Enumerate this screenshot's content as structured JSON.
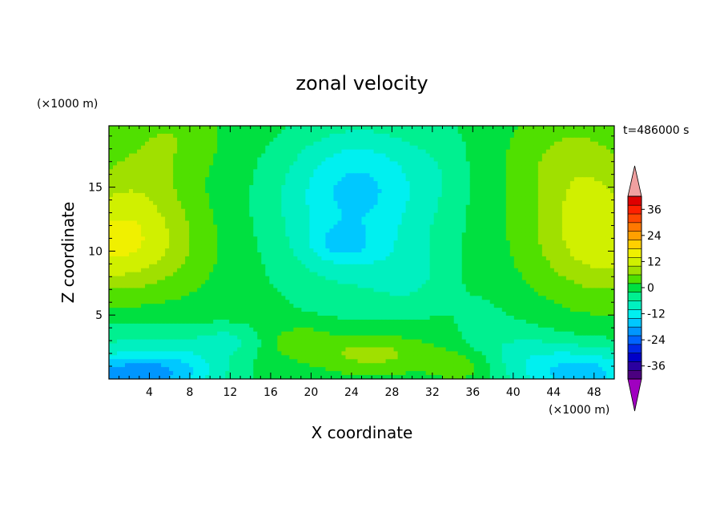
{
  "chart_data": {
    "type": "heatmap",
    "title": "zonal velocity",
    "xlabel": "X coordinate",
    "ylabel": "Z coordinate",
    "x_unit": "(×1000 m)",
    "y_unit": "(×1000 m)",
    "time_label": "t=486000 s",
    "xlim": [
      0,
      50
    ],
    "ylim": [
      0,
      19.8
    ],
    "x_ticks": [
      4,
      8,
      12,
      16,
      20,
      24,
      28,
      32,
      36,
      40,
      44,
      48
    ],
    "y_ticks": [
      5,
      10,
      15
    ],
    "colorbar": {
      "tick_labels": [
        "36",
        "24",
        "12",
        "0",
        "-12",
        "-24",
        "-36"
      ],
      "tick_values": [
        36,
        24,
        12,
        0,
        -12,
        -24,
        -36
      ],
      "range": [
        -42,
        42
      ],
      "colors": [
        "#4b0080",
        "#2a00a0",
        "#0000c8",
        "#0028e6",
        "#0064ff",
        "#0096ff",
        "#00c8ff",
        "#00f0f0",
        "#00f0c0",
        "#00f090",
        "#00e040",
        "#50e000",
        "#a0e000",
        "#d0f000",
        "#f0f000",
        "#ffd000",
        "#ffa000",
        "#ff7800",
        "#ff4800",
        "#ff2000",
        "#e00000"
      ],
      "over_color": "#f0a0a0",
      "under_color": "#a000c0"
    },
    "grid": false
  }
}
